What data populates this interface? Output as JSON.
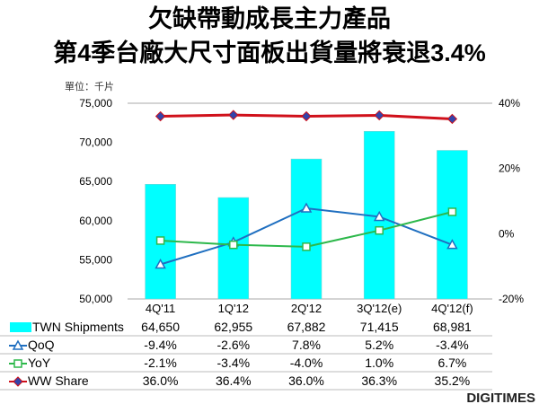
{
  "chart_data": {
    "type": "bar",
    "title_line1": "欠缺帶動成長主力產品",
    "title_line2": "第4季台廠大尺寸面板出貨量將衰退3.4%",
    "unit_label": "單位：千片",
    "categories": [
      "4Q'11",
      "1Q'12",
      "2Q'12",
      "3Q'12(e)",
      "4Q'12(f)"
    ],
    "ylim_left": [
      50000,
      75000
    ],
    "ylim_right": [
      -20,
      40
    ],
    "left_ticks": [
      "50,000",
      "55,000",
      "60,000",
      "65,000",
      "70,000",
      "75,000"
    ],
    "right_ticks": [
      "-20%",
      "0%",
      "20%",
      "40%"
    ],
    "series": [
      {
        "name": "TWN Shipments",
        "type": "bar",
        "axis": "left",
        "color": "#00FFFF",
        "values": [
          64650,
          62955,
          67882,
          71415,
          68981
        ],
        "labels": [
          "64,650",
          "62,955",
          "67,882",
          "71,415",
          "68,981"
        ]
      },
      {
        "name": "QoQ",
        "type": "line",
        "axis": "right",
        "color": "#1F6FC0",
        "marker": "triangle",
        "values": [
          -9.4,
          -2.6,
          7.8,
          5.2,
          -3.4
        ],
        "labels": [
          "-9.4%",
          "-2.6%",
          "7.8%",
          "5.2%",
          "-3.4%"
        ]
      },
      {
        "name": "YoY",
        "type": "line",
        "axis": "right",
        "color": "#2DB84B",
        "marker": "square",
        "values": [
          -2.1,
          -3.4,
          -4.0,
          1.0,
          6.7
        ],
        "labels": [
          "-2.1%",
          "-3.4%",
          "-4.0%",
          "1.0%",
          "6.7%"
        ]
      },
      {
        "name": "WW Share",
        "type": "line",
        "axis": "right",
        "color": "#D0101A",
        "marker": "diamond",
        "values": [
          36.0,
          36.4,
          36.0,
          36.3,
          35.2
        ],
        "labels": [
          "36.0%",
          "36.4%",
          "36.0%",
          "36.3%",
          "35.2%"
        ]
      }
    ],
    "legend": "table-below",
    "grid": false
  },
  "brand": "DIGITIMES"
}
